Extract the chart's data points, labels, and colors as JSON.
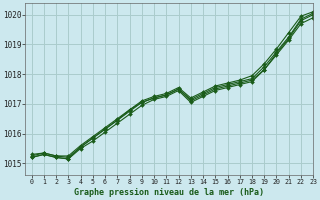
{
  "title": "Graphe pression niveau de la mer (hPa)",
  "bg_color": "#cce8ee",
  "grid_color": "#aacccc",
  "line_color": "#1a5c1a",
  "marker_color": "#1a5c1a",
  "xlim": [
    -0.5,
    23
  ],
  "ylim": [
    1014.6,
    1020.4
  ],
  "xticks": [
    0,
    1,
    2,
    3,
    4,
    5,
    6,
    7,
    8,
    9,
    10,
    11,
    12,
    13,
    14,
    15,
    16,
    17,
    18,
    19,
    20,
    21,
    22,
    23
  ],
  "yticks": [
    1015,
    1016,
    1017,
    1018,
    1019,
    1020
  ],
  "series": [
    [
      1015.2,
      1015.3,
      1015.2,
      1015.15,
      1015.5,
      1015.75,
      1016.05,
      1016.35,
      1016.65,
      1016.95,
      1017.15,
      1017.25,
      1017.45,
      1017.05,
      1017.25,
      1017.45,
      1017.55,
      1017.65,
      1017.75,
      1018.15,
      1018.65,
      1019.15,
      1019.7,
      1019.9
    ],
    [
      1015.25,
      1015.35,
      1015.25,
      1015.2,
      1015.55,
      1015.85,
      1016.15,
      1016.45,
      1016.75,
      1017.05,
      1017.2,
      1017.3,
      1017.5,
      1017.15,
      1017.35,
      1017.55,
      1017.65,
      1017.75,
      1017.85,
      1018.25,
      1018.75,
      1019.25,
      1019.85,
      1020.05
    ],
    [
      1015.3,
      1015.35,
      1015.25,
      1015.25,
      1015.6,
      1015.9,
      1016.2,
      1016.5,
      1016.8,
      1017.1,
      1017.25,
      1017.35,
      1017.55,
      1017.2,
      1017.4,
      1017.6,
      1017.7,
      1017.8,
      1017.95,
      1018.35,
      1018.85,
      1019.4,
      1019.95,
      1020.1
    ],
    [
      1015.2,
      1015.3,
      1015.2,
      1015.15,
      1015.55,
      1015.85,
      1016.15,
      1016.45,
      1016.8,
      1017.05,
      1017.2,
      1017.3,
      1017.5,
      1017.1,
      1017.3,
      1017.5,
      1017.6,
      1017.7,
      1017.8,
      1018.15,
      1018.7,
      1019.2,
      1019.8,
      1020.0
    ]
  ]
}
